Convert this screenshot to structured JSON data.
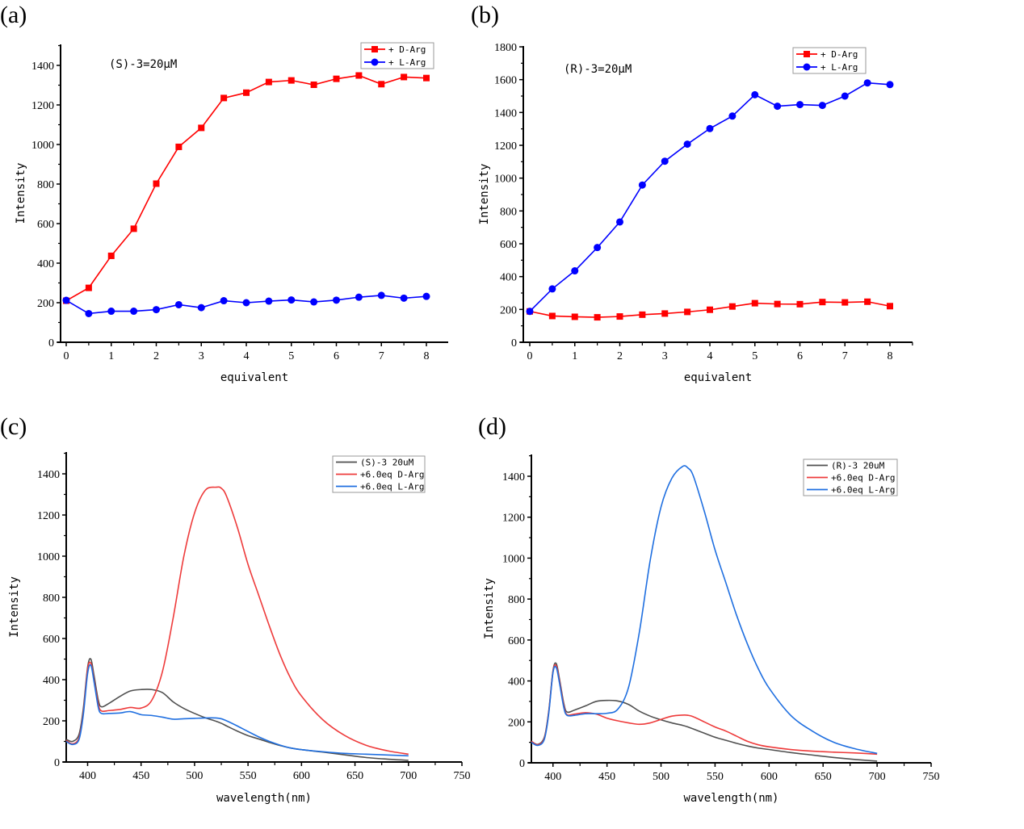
{
  "panels": [
    {
      "label": "(a)"
    },
    {
      "label": "(b)"
    },
    {
      "label": "(c)"
    },
    {
      "label": "(d)"
    }
  ],
  "colors": {
    "red_marker": "#ff0000",
    "blue_marker": "#0000ff",
    "spectrum_black": "#505050",
    "spectrum_red": "#ee3b3b",
    "spectrum_blue": "#1f6fe0"
  },
  "chart_data": [
    {
      "id": "a",
      "type": "line",
      "title": "",
      "annotation": "(S)-3=20μM",
      "xlabel": "equivalent",
      "ylabel": "Intensity",
      "xlim": [
        -0.2,
        8.5
      ],
      "ylim": [
        0,
        1500
      ],
      "xticks": [
        0,
        1,
        2,
        3,
        4,
        5,
        6,
        7,
        8
      ],
      "yticks": [
        0,
        200,
        400,
        600,
        800,
        1000,
        1200,
        1400
      ],
      "grid": false,
      "legend_position": "top-right",
      "x": [
        0,
        0.5,
        1,
        1.5,
        2,
        2.5,
        3,
        3.5,
        4,
        4.5,
        5,
        5.5,
        6,
        6.5,
        7,
        7.5,
        8
      ],
      "series": [
        {
          "name": "+ D-Arg",
          "marker": "square",
          "color": "#ff0000",
          "values": [
            210,
            275,
            437,
            574,
            802,
            988,
            1084,
            1235,
            1262,
            1316,
            1324,
            1302,
            1332,
            1349,
            1305,
            1341,
            1336
          ]
        },
        {
          "name": "+ L-Arg",
          "marker": "circle",
          "color": "#0000ff",
          "values": [
            212,
            145,
            157,
            157,
            165,
            190,
            175,
            210,
            200,
            208,
            214,
            204,
            213,
            228,
            237,
            223,
            232
          ]
        }
      ]
    },
    {
      "id": "b",
      "type": "line",
      "title": "",
      "annotation": "(R)-3=20μM",
      "xlabel": "equivalent",
      "ylabel": "Intensity",
      "xlim": [
        -0.1,
        8.5
      ],
      "ylim": [
        0,
        1800
      ],
      "xticks": [
        0,
        1,
        2,
        3,
        4,
        5,
        6,
        7,
        8
      ],
      "yticks": [
        0,
        200,
        400,
        600,
        800,
        1000,
        1200,
        1400,
        1600,
        1800
      ],
      "grid": false,
      "legend_position": "top-right",
      "x": [
        0,
        0.5,
        1,
        1.5,
        2,
        2.5,
        3,
        3.5,
        4,
        4.5,
        5,
        5.5,
        6,
        6.5,
        7,
        7.5,
        8
      ],
      "series": [
        {
          "name": "+ D-Arg",
          "marker": "square",
          "color": "#ff0000",
          "values": [
            188,
            160,
            155,
            152,
            157,
            168,
            175,
            185,
            198,
            218,
            238,
            233,
            232,
            245,
            243,
            247,
            220
          ]
        },
        {
          "name": "+ L-Arg",
          "marker": "circle",
          "color": "#0000ff",
          "values": [
            188,
            325,
            435,
            577,
            733,
            958,
            1103,
            1207,
            1302,
            1378,
            1508,
            1438,
            1448,
            1443,
            1500,
            1580,
            1570
          ]
        }
      ]
    },
    {
      "id": "c",
      "type": "line",
      "title": "",
      "xlabel": "wavelength(nm)",
      "ylabel": "Intensity",
      "xlim": [
        380,
        750
      ],
      "ylim": [
        0,
        1500
      ],
      "xticks": [
        400,
        450,
        500,
        550,
        600,
        650,
        700,
        750
      ],
      "yticks": [
        0,
        200,
        400,
        600,
        800,
        1000,
        1200,
        1400
      ],
      "grid": false,
      "legend_position": "top-right",
      "x": [
        380,
        386,
        392,
        396,
        400,
        403,
        406,
        410,
        413,
        420,
        430,
        440,
        450,
        460,
        470,
        480,
        490,
        500,
        510,
        520,
        525,
        530,
        540,
        550,
        560,
        570,
        580,
        590,
        600,
        620,
        640,
        660,
        680,
        700
      ],
      "series": [
        {
          "name": "(S)-3 20uM",
          "color": "#505050",
          "values": [
            110,
            100,
            135,
            260,
            460,
            500,
            420,
            300,
            268,
            285,
            318,
            345,
            352,
            352,
            337,
            292,
            260,
            236,
            215,
            198,
            188,
            175,
            150,
            128,
            112,
            95,
            80,
            68,
            60,
            48,
            35,
            22,
            14,
            8
          ]
        },
        {
          "name": "+6.0eq D-Arg",
          "color": "#ee3b3b",
          "values": [
            105,
            88,
            118,
            240,
            450,
            480,
            400,
            280,
            248,
            250,
            255,
            265,
            262,
            300,
            440,
            700,
            1000,
            1210,
            1320,
            1335,
            1330,
            1290,
            1140,
            960,
            810,
            660,
            520,
            405,
            320,
            205,
            130,
            82,
            55,
            38
          ]
        },
        {
          "name": "+6.0eq L-Arg",
          "color": "#1f6fe0",
          "values": [
            100,
            85,
            110,
            230,
            430,
            470,
            390,
            265,
            236,
            236,
            238,
            245,
            230,
            226,
            218,
            208,
            210,
            212,
            214,
            214,
            210,
            200,
            175,
            148,
            122,
            100,
            82,
            68,
            60,
            50,
            42,
            38,
            34,
            30
          ]
        }
      ]
    },
    {
      "id": "d",
      "type": "line",
      "title": "",
      "xlabel": "wavelength(nm)",
      "ylabel": "Intensity",
      "xlim": [
        380,
        750
      ],
      "ylim": [
        0,
        1500
      ],
      "xticks": [
        400,
        450,
        500,
        550,
        600,
        650,
        700,
        750
      ],
      "yticks": [
        0,
        200,
        400,
        600,
        800,
        1000,
        1200,
        1400
      ],
      "grid": false,
      "legend_position": "top-right",
      "x": [
        380,
        386,
        392,
        396,
        400,
        403,
        406,
        410,
        413,
        420,
        430,
        440,
        450,
        460,
        470,
        480,
        490,
        500,
        510,
        520,
        525,
        530,
        540,
        550,
        560,
        570,
        580,
        590,
        600,
        620,
        640,
        660,
        680,
        700
      ],
      "series": [
        {
          "name": "(R)-3 20uM",
          "color": "#505050",
          "values": [
            105,
            90,
            125,
            250,
            450,
            485,
            410,
            290,
            248,
            258,
            278,
            300,
            305,
            302,
            285,
            252,
            228,
            210,
            195,
            183,
            175,
            165,
            145,
            125,
            110,
            95,
            82,
            72,
            65,
            50,
            38,
            26,
            16,
            8
          ]
        },
        {
          "name": "+6.0eq D-Arg",
          "color": "#ee3b3b",
          "values": [
            105,
            88,
            120,
            245,
            445,
            475,
            400,
            280,
            235,
            238,
            245,
            238,
            218,
            205,
            195,
            188,
            195,
            212,
            228,
            233,
            232,
            225,
            200,
            175,
            155,
            130,
            105,
            88,
            78,
            65,
            57,
            52,
            48,
            42
          ]
        },
        {
          "name": "+6.0eq L-Arg",
          "color": "#1f6fe0",
          "values": [
            100,
            85,
            115,
            238,
            440,
            465,
            390,
            270,
            232,
            232,
            240,
            240,
            242,
            262,
            370,
            640,
            990,
            1250,
            1390,
            1448,
            1440,
            1400,
            1230,
            1040,
            880,
            720,
            580,
            460,
            365,
            232,
            155,
            100,
            68,
            46
          ]
        }
      ]
    }
  ]
}
